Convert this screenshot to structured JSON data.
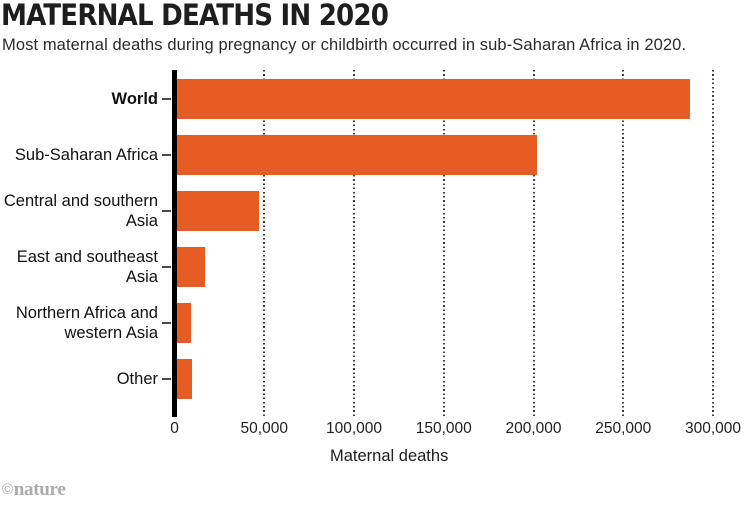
{
  "chart_data": {
    "type": "bar",
    "orientation": "horizontal",
    "title": "MATERNAL DEATHS IN 2020",
    "subtitle": "Most maternal deaths during pregnancy or childbirth occurred in sub-Saharan Africa in 2020.",
    "categories": [
      "World",
      "Sub-Saharan Africa",
      "Central and southern Asia",
      "East and southeast Asia",
      "Northern Africa and western Asia",
      "Other"
    ],
    "values": [
      287000,
      202000,
      47000,
      17000,
      9000,
      10000
    ],
    "bold_categories": [
      "World"
    ],
    "xlabel": "Maternal deaths",
    "xlim": [
      0,
      300000
    ],
    "x_ticks": [
      0,
      50000,
      100000,
      150000,
      200000,
      250000,
      300000
    ],
    "x_tick_labels": [
      "0",
      "50,000",
      "100,000",
      "150,000",
      "200,000",
      "250,000",
      "300,000"
    ],
    "bar_color": "#E65C23",
    "grid": "dotted-vertical",
    "legend": "none"
  },
  "footer": {
    "copyright_symbol": "©",
    "brand": "nature"
  }
}
